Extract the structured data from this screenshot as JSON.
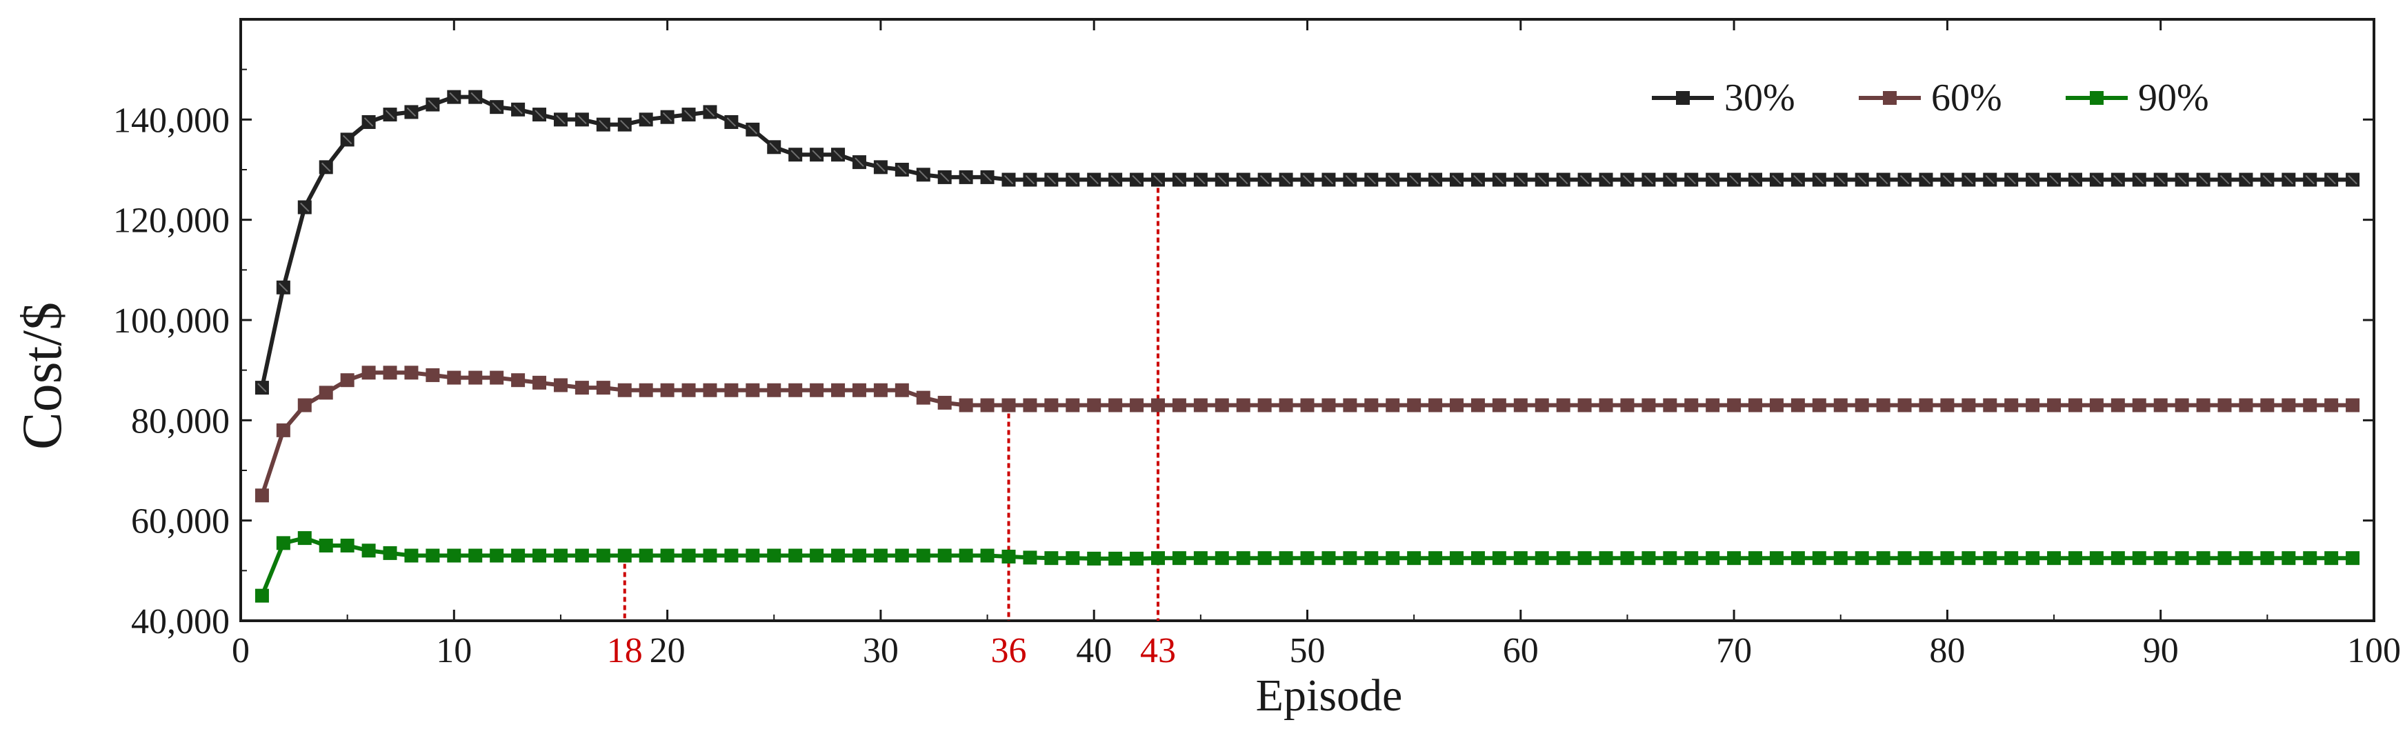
{
  "chart_data": {
    "type": "line",
    "title": "",
    "xlabel": "Episode",
    "ylabel": "Cost/$",
    "xlim": [
      0,
      100
    ],
    "ylim": [
      40000,
      160000
    ],
    "xticks": [
      0,
      10,
      20,
      30,
      40,
      50,
      60,
      70,
      80,
      90,
      100
    ],
    "yticks": [
      40000,
      60000,
      80000,
      100000,
      120000,
      140000
    ],
    "ytick_labels": [
      "40,000",
      "60,000",
      "80,000",
      "100,000",
      "120,000",
      "140,000"
    ],
    "grid": false,
    "legend_position": "top-right",
    "markers": [
      {
        "label": "18",
        "x": 18,
        "series": "90%",
        "color": "#cc0000"
      },
      {
        "label": "36",
        "x": 36,
        "series": "60%",
        "color": "#cc0000"
      },
      {
        "label": "43",
        "x": 43,
        "series": "30%",
        "color": "#cc0000"
      }
    ],
    "series": [
      {
        "name": "30%",
        "color": "#222222",
        "x": [
          1,
          2,
          3,
          4,
          5,
          6,
          7,
          8,
          9,
          10,
          11,
          12,
          13,
          14,
          15,
          16,
          17,
          18,
          19,
          20,
          21,
          22,
          23,
          24,
          25,
          26,
          27,
          28,
          29,
          30,
          31,
          32,
          33,
          34,
          35,
          36,
          37,
          38,
          39,
          40,
          41,
          42,
          43,
          44,
          45,
          46,
          47,
          48,
          49,
          50,
          51,
          52,
          53,
          54,
          55,
          56,
          57,
          58,
          59,
          60,
          61,
          62,
          63,
          64,
          65,
          66,
          67,
          68,
          69,
          70,
          71,
          72,
          73,
          74,
          75,
          76,
          77,
          78,
          79,
          80,
          81,
          82,
          83,
          84,
          85,
          86,
          87,
          88,
          89,
          90,
          91,
          92,
          93,
          94,
          95,
          96,
          97,
          98,
          99
        ],
        "values": [
          86500,
          106500,
          122500,
          130500,
          136000,
          139500,
          141000,
          141500,
          143000,
          144500,
          144500,
          142500,
          142000,
          141000,
          140000,
          140000,
          139000,
          139000,
          140000,
          140500,
          141000,
          141500,
          139500,
          138000,
          134500,
          133000,
          133000,
          133000,
          131500,
          130500,
          130000,
          129000,
          128500,
          128500,
          128500,
          128000,
          128000,
          128000,
          128000,
          128000,
          128000,
          128000,
          128000,
          128000,
          128000,
          128000,
          128000,
          128000,
          128000,
          128000,
          128000,
          128000,
          128000,
          128000,
          128000,
          128000,
          128000,
          128000,
          128000,
          128000,
          128000,
          128000,
          128000,
          128000,
          128000,
          128000,
          128000,
          128000,
          128000,
          128000,
          128000,
          128000,
          128000,
          128000,
          128000,
          128000,
          128000,
          128000,
          128000,
          128000,
          128000,
          128000,
          128000,
          128000,
          128000,
          128000,
          128000,
          128000,
          128000,
          128000,
          128000,
          128000,
          128000,
          128000,
          128000,
          128000,
          128000,
          128000,
          128000
        ]
      },
      {
        "name": "60%",
        "color": "#6b3f3f",
        "x": [
          1,
          2,
          3,
          4,
          5,
          6,
          7,
          8,
          9,
          10,
          11,
          12,
          13,
          14,
          15,
          16,
          17,
          18,
          19,
          20,
          21,
          22,
          23,
          24,
          25,
          26,
          27,
          28,
          29,
          30,
          31,
          32,
          33,
          34,
          35,
          36,
          37,
          38,
          39,
          40,
          41,
          42,
          43,
          44,
          45,
          46,
          47,
          48,
          49,
          50,
          51,
          52,
          53,
          54,
          55,
          56,
          57,
          58,
          59,
          60,
          61,
          62,
          63,
          64,
          65,
          66,
          67,
          68,
          69,
          70,
          71,
          72,
          73,
          74,
          75,
          76,
          77,
          78,
          79,
          80,
          81,
          82,
          83,
          84,
          85,
          86,
          87,
          88,
          89,
          90,
          91,
          92,
          93,
          94,
          95,
          96,
          97,
          98,
          99
        ],
        "values": [
          65000,
          78000,
          83000,
          85500,
          88000,
          89500,
          89500,
          89500,
          89000,
          88500,
          88500,
          88500,
          88000,
          87500,
          87000,
          86500,
          86500,
          86000,
          86000,
          86000,
          86000,
          86000,
          86000,
          86000,
          86000,
          86000,
          86000,
          86000,
          86000,
          86000,
          86000,
          84500,
          83500,
          83000,
          83000,
          83000,
          83000,
          83000,
          83000,
          83000,
          83000,
          83000,
          83000,
          83000,
          83000,
          83000,
          83000,
          83000,
          83000,
          83000,
          83000,
          83000,
          83000,
          83000,
          83000,
          83000,
          83000,
          83000,
          83000,
          83000,
          83000,
          83000,
          83000,
          83000,
          83000,
          83000,
          83000,
          83000,
          83000,
          83000,
          83000,
          83000,
          83000,
          83000,
          83000,
          83000,
          83000,
          83000,
          83000,
          83000,
          83000,
          83000,
          83000,
          83000,
          83000,
          83000,
          83000,
          83000,
          83000,
          83000,
          83000,
          83000,
          83000,
          83000,
          83000,
          83000,
          83000,
          83000,
          83000
        ]
      },
      {
        "name": "90%",
        "color": "#0a7a0a",
        "x": [
          1,
          2,
          3,
          4,
          5,
          6,
          7,
          8,
          9,
          10,
          11,
          12,
          13,
          14,
          15,
          16,
          17,
          18,
          19,
          20,
          21,
          22,
          23,
          24,
          25,
          26,
          27,
          28,
          29,
          30,
          31,
          32,
          33,
          34,
          35,
          36,
          37,
          38,
          39,
          40,
          41,
          42,
          43,
          44,
          45,
          46,
          47,
          48,
          49,
          50,
          51,
          52,
          53,
          54,
          55,
          56,
          57,
          58,
          59,
          60,
          61,
          62,
          63,
          64,
          65,
          66,
          67,
          68,
          69,
          70,
          71,
          72,
          73,
          74,
          75,
          76,
          77,
          78,
          79,
          80,
          81,
          82,
          83,
          84,
          85,
          86,
          87,
          88,
          89,
          90,
          91,
          92,
          93,
          94,
          95,
          96,
          97,
          98,
          99
        ],
        "values": [
          45000,
          55500,
          56500,
          55000,
          55000,
          54000,
          53500,
          53000,
          53000,
          53000,
          53000,
          53000,
          53000,
          53000,
          53000,
          53000,
          53000,
          53000,
          53000,
          53000,
          53000,
          53000,
          53000,
          53000,
          53000,
          53000,
          53000,
          53000,
          53000,
          53000,
          53000,
          53000,
          53000,
          53000,
          53000,
          52800,
          52600,
          52500,
          52500,
          52400,
          52400,
          52400,
          52500,
          52500,
          52500,
          52500,
          52500,
          52500,
          52500,
          52500,
          52500,
          52500,
          52500,
          52500,
          52500,
          52500,
          52500,
          52500,
          52500,
          52500,
          52500,
          52500,
          52500,
          52500,
          52500,
          52500,
          52500,
          52500,
          52500,
          52500,
          52500,
          52500,
          52500,
          52500,
          52500,
          52500,
          52500,
          52500,
          52500,
          52500,
          52500,
          52500,
          52500,
          52500,
          52500,
          52500,
          52500,
          52500,
          52500,
          52500,
          52500,
          52500,
          52500,
          52500,
          52500,
          52500,
          52500,
          52500,
          52500
        ]
      }
    ]
  }
}
